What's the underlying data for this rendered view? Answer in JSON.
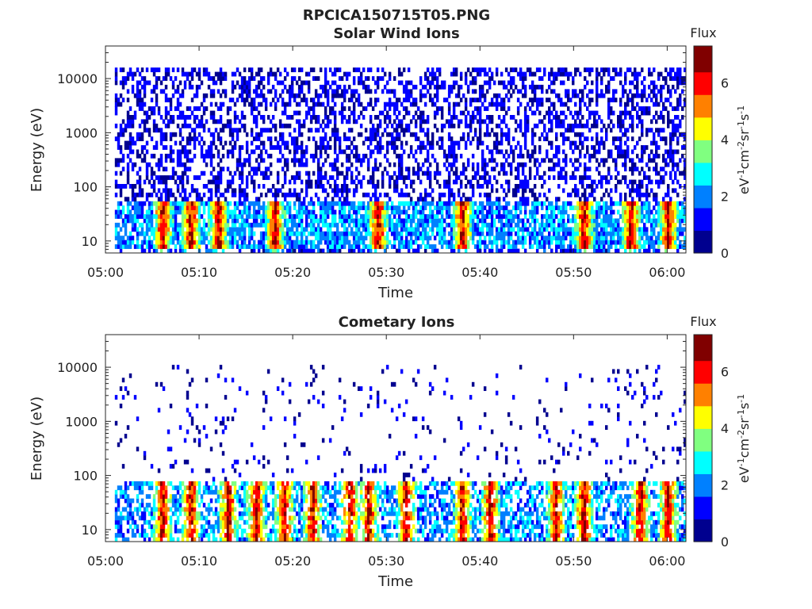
{
  "figure_title": "RPCICA150715T05.PNG",
  "colormap": [
    "#00008f",
    "#0000ff",
    "#0080ff",
    "#00ffff",
    "#80ff80",
    "#ffff00",
    "#ff8000",
    "#ff0000",
    "#800000"
  ],
  "chart_data": [
    {
      "type": "heatmap",
      "title": "Solar Wind Ions",
      "xlabel": "Time",
      "ylabel": "Energy (eV)",
      "x_range": [
        "05:00",
        "06:02"
      ],
      "x_ticks": [
        "05:00",
        "05:10",
        "05:20",
        "05:30",
        "05:40",
        "05:50",
        "06:00"
      ],
      "y_scale": "log",
      "y_range": [
        6,
        40000
      ],
      "y_ticks": [
        "10",
        "100",
        "1000",
        "10000"
      ],
      "colorbar": {
        "title": "Flux",
        "label": "eV-1cm-2sr-1s-1",
        "ticks": [
          "0",
          "2",
          "4",
          "6"
        ],
        "range": [
          0,
          7.3
        ]
      },
      "grid": false,
      "profile": {
        "bright_band_eV": [
          12,
          45
        ],
        "sparse_flux_up_to_eV": 15000,
        "bright_times": [
          "05:06",
          "05:09",
          "05:12",
          "05:18",
          "05:29",
          "05:38",
          "05:51",
          "05:56",
          "06:00"
        ]
      }
    },
    {
      "type": "heatmap",
      "title": "Cometary Ions",
      "xlabel": "Time",
      "ylabel": "Energy (eV)",
      "x_range": [
        "05:00",
        "06:02"
      ],
      "x_ticks": [
        "05:00",
        "05:10",
        "05:20",
        "05:30",
        "05:40",
        "05:50",
        "06:00"
      ],
      "y_scale": "log",
      "y_range": [
        6,
        40000
      ],
      "y_ticks": [
        "10",
        "100",
        "1000",
        "10000"
      ],
      "colorbar": {
        "title": "Flux",
        "label": "eV-1cm-2sr-1s-1",
        "ticks": [
          "0",
          "2",
          "4",
          "6"
        ],
        "range": [
          0,
          7.3
        ]
      },
      "grid": false,
      "profile": {
        "bright_band_eV": [
          10,
          60
        ],
        "sparse_flux_up_to_eV": 12000,
        "bright_times": [
          "05:06",
          "05:09",
          "05:13",
          "05:16",
          "05:19",
          "05:22",
          "05:26",
          "05:28",
          "05:32",
          "05:38",
          "05:41",
          "05:48",
          "05:51",
          "05:57",
          "06:00"
        ]
      }
    }
  ]
}
